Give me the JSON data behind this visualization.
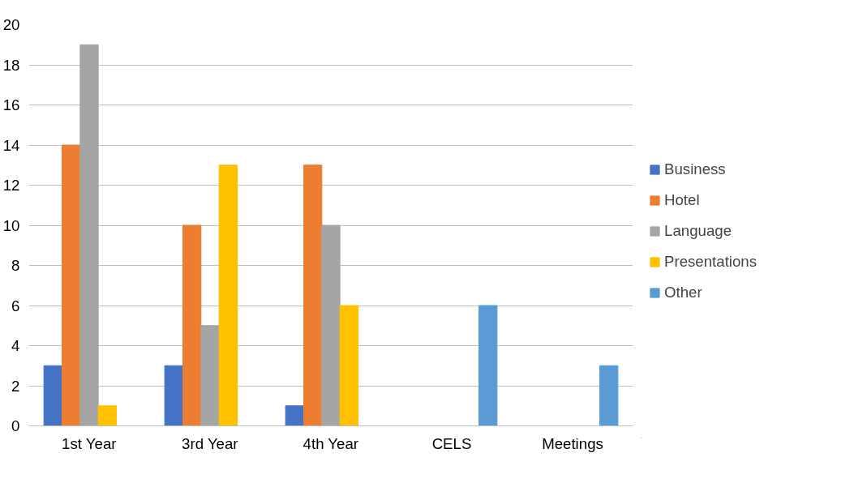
{
  "chart_data": {
    "type": "bar",
    "categories": [
      "1st Year",
      "3rd Year",
      "4th Year",
      "CELS",
      "Meetings"
    ],
    "series": [
      {
        "name": "Business",
        "color": "#4472c4",
        "values": [
          3,
          3,
          1,
          null,
          null
        ]
      },
      {
        "name": "Hotel",
        "color": "#ed7d31",
        "values": [
          14,
          10,
          13,
          null,
          null
        ]
      },
      {
        "name": "Language",
        "color": "#a5a5a5",
        "values": [
          19,
          5,
          10,
          null,
          null
        ]
      },
      {
        "name": "Presentations",
        "color": "#ffc000",
        "values": [
          1,
          13,
          6,
          null,
          null
        ]
      },
      {
        "name": "Other",
        "color": "#5b9bd5",
        "values": [
          null,
          null,
          null,
          6,
          3
        ]
      }
    ],
    "ylim": [
      0,
      20
    ],
    "yticks": [
      0,
      2,
      4,
      6,
      8,
      10,
      12,
      14,
      16,
      18,
      20
    ],
    "grid": "y",
    "legend": "right"
  }
}
